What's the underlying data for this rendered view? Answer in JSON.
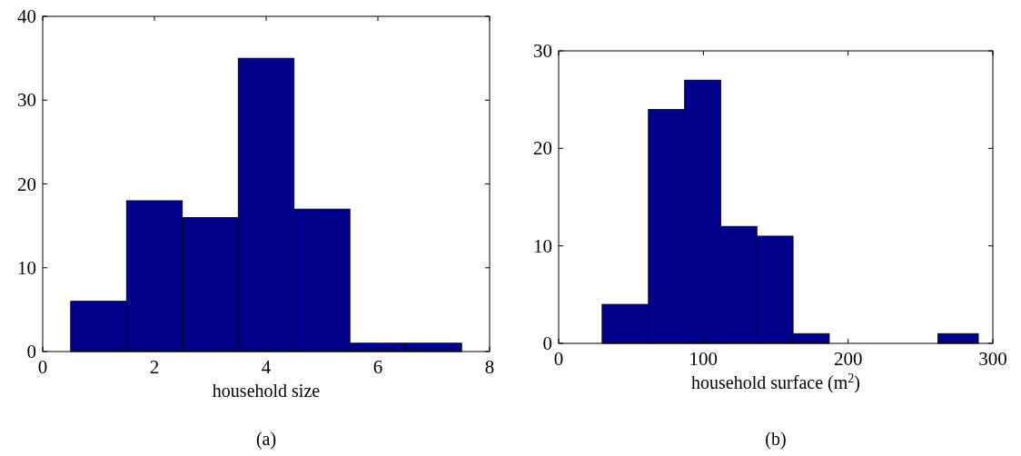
{
  "chart_data": [
    {
      "type": "histogram",
      "bins": [
        0.5,
        1.5,
        2.5,
        3.5,
        4.5,
        5.5,
        6.5,
        7.5
      ],
      "values": [
        6,
        18,
        16,
        35,
        17,
        1,
        1
      ],
      "color": "#00008b",
      "xlim": [
        0,
        8
      ],
      "xticks": [
        0,
        2,
        4,
        6,
        8
      ],
      "ylim": [
        0,
        40
      ],
      "yticks": [
        0,
        10,
        20,
        30,
        40
      ],
      "xlabel": "household size",
      "annotations": [
        "(a)"
      ],
      "grid": false
    },
    {
      "type": "histogram",
      "bins": [
        30,
        62,
        87,
        112,
        137,
        162,
        187,
        262,
        290
      ],
      "values": [
        4,
        24,
        27,
        12,
        11,
        1,
        0,
        1
      ],
      "color": "#00008b",
      "xlim": [
        0,
        300
      ],
      "xticks": [
        0,
        100,
        200,
        300
      ],
      "ylim": [
        0,
        30
      ],
      "yticks": [
        0,
        10,
        20,
        30
      ],
      "xlabel": "household surface (m$^{2}$)",
      "annotations": [
        "(b)"
      ],
      "grid": false
    }
  ]
}
